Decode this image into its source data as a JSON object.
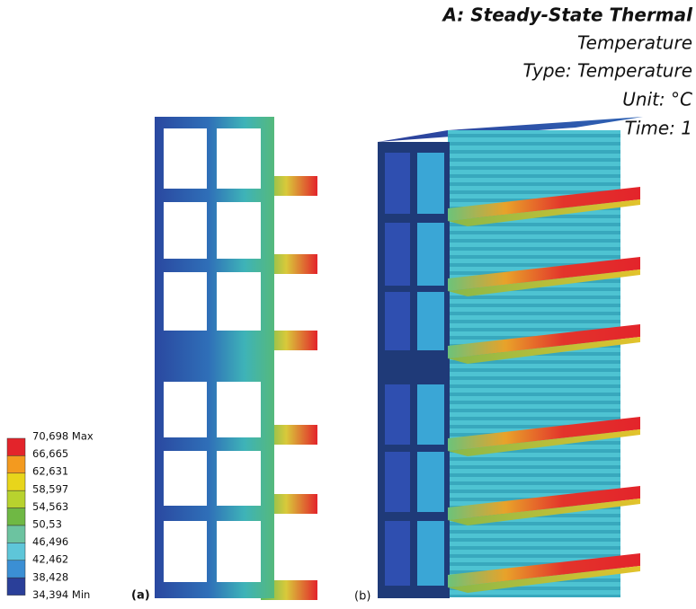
{
  "header": {
    "title": "A: Steady-State Thermal",
    "lines": [
      "Temperature",
      "Type: Temperature",
      "Unit: °C",
      "Time: 1"
    ]
  },
  "legend": {
    "labels": [
      "70,698 Max",
      "66,665",
      "62,631",
      "58,597",
      "54,563",
      "50,53",
      "46,496",
      "42,462",
      "38,428",
      "34,394 Min"
    ],
    "colors": [
      "#e3242b",
      "#f39a1f",
      "#e8d51b",
      "#b8d22e",
      "#6fb844",
      "#6cc3a0",
      "#5ec6d9",
      "#3b8fd4",
      "#2a3f99"
    ]
  },
  "panels": [
    "(a)",
    "(b)"
  ]
}
